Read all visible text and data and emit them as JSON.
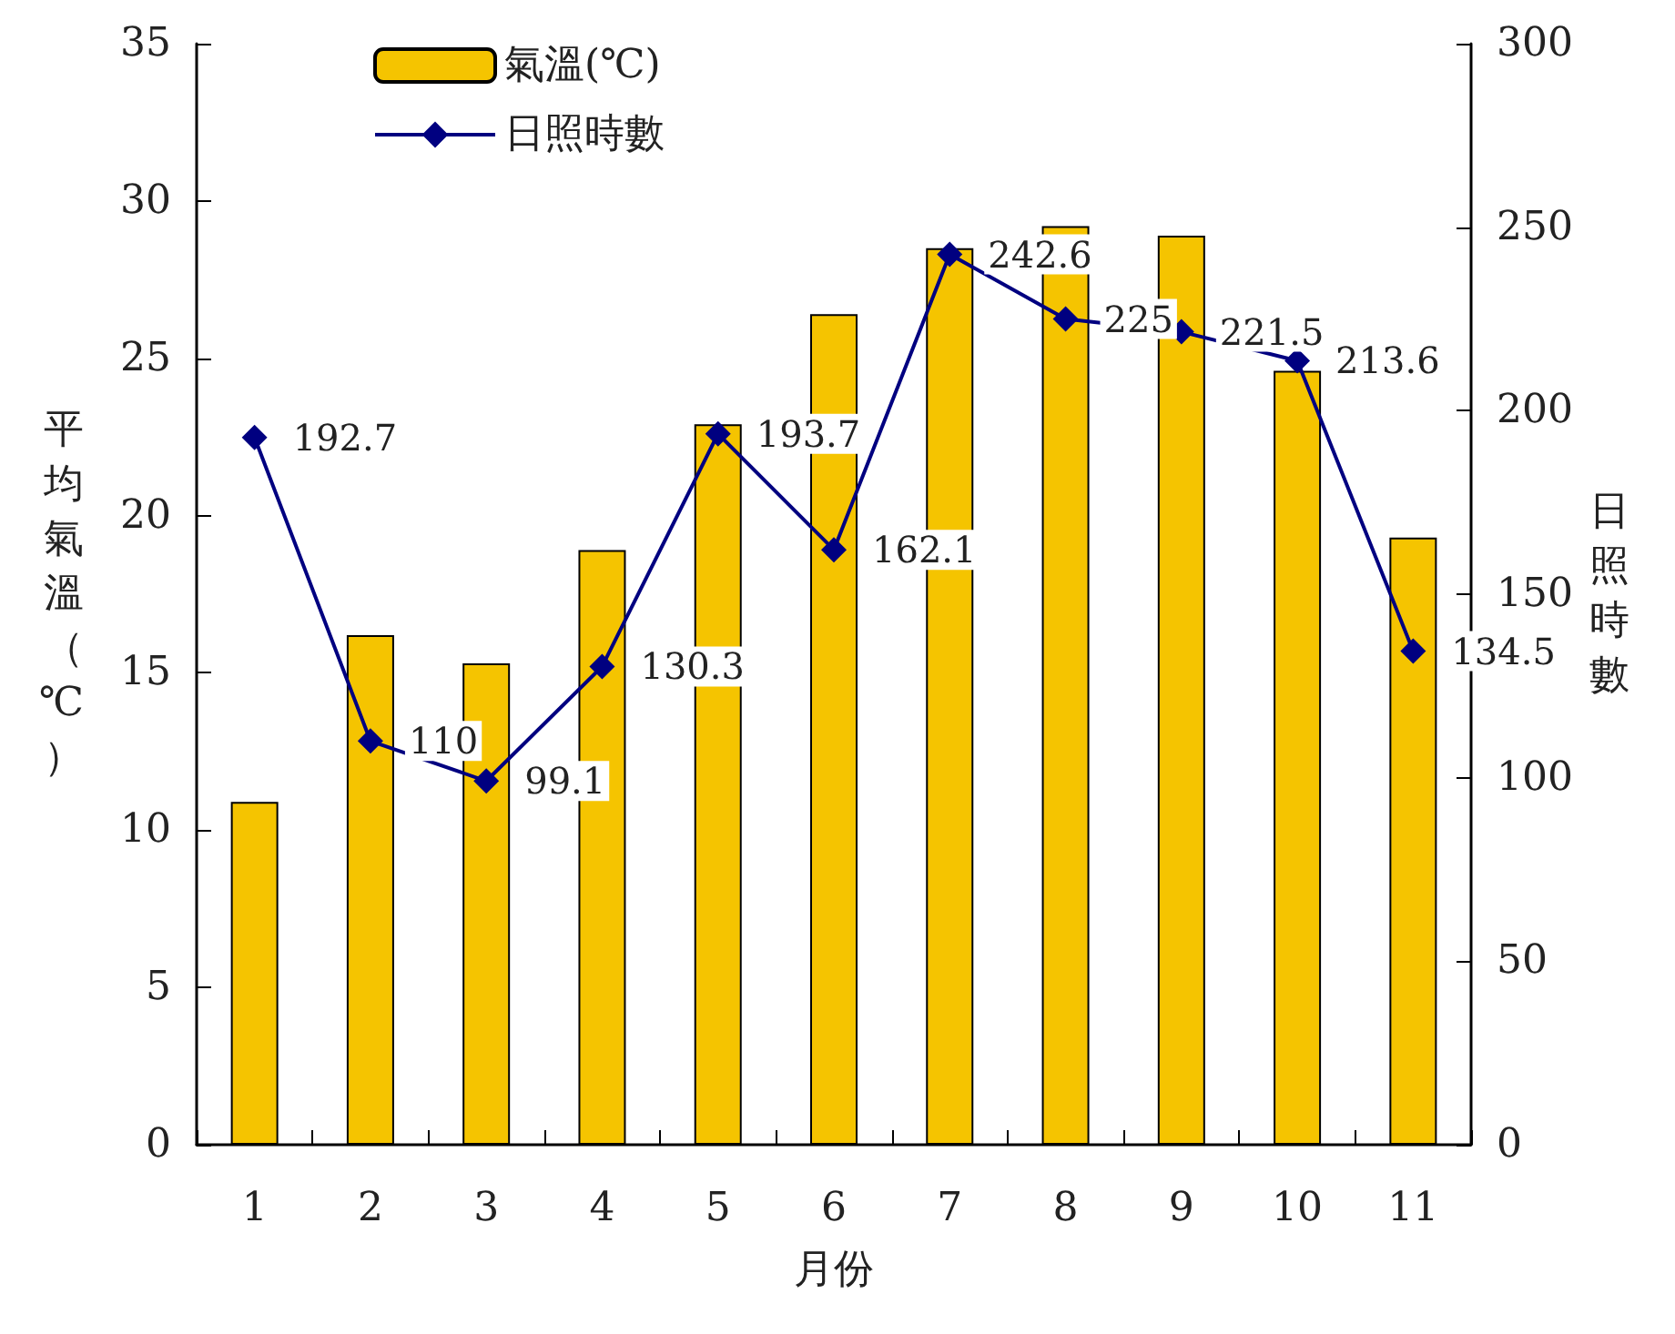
{
  "chart_data": {
    "type": "bar",
    "xlabel": "月份",
    "ylabel": "平均氣溫（℃）",
    "y2label": "日照時數",
    "categories": [
      "1",
      "2",
      "3",
      "4",
      "5",
      "6",
      "7",
      "8",
      "9",
      "10",
      "11"
    ],
    "series": [
      {
        "name": "氣溫(℃)",
        "color": "#f5c400",
        "values": [
          10.9,
          16.2,
          15.3,
          18.9,
          22.9,
          26.4,
          28.5,
          29.2,
          28.9,
          24.6,
          19.3
        ]
      },
      {
        "name": "日照時數",
        "type": "line",
        "axis": "y2",
        "color": "#000080",
        "marker": "diamond",
        "values": [
          192.7,
          110,
          99.1,
          130.3,
          193.7,
          162.1,
          242.6,
          225,
          221.5,
          213.6,
          134.5
        ],
        "value_labels": [
          "192.7",
          "110",
          "99.1",
          "130.3",
          "193.7",
          "162.1",
          "242.6",
          "225",
          "221.5",
          "213.6",
          "134.5"
        ]
      }
    ],
    "ylim": [
      0,
      35
    ],
    "yticks": [
      0,
      5,
      10,
      15,
      20,
      25,
      30,
      35
    ],
    "y2lim": [
      0,
      300
    ],
    "y2ticks": [
      0,
      50,
      100,
      150,
      200,
      250,
      300
    ],
    "grid": false,
    "legend": "top left"
  }
}
